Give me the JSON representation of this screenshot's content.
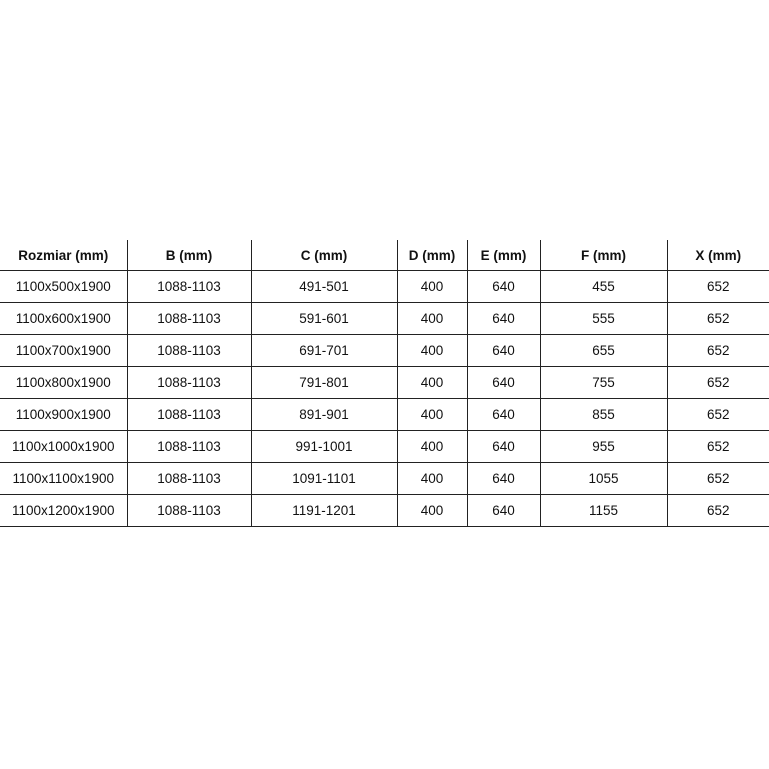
{
  "table": {
    "headers": [
      "Rozmiar (mm)",
      "B (mm)",
      "C (mm)",
      "D (mm)",
      "E (mm)",
      "F (mm)",
      "X (mm)"
    ],
    "rows": [
      [
        "1100x500x1900",
        "1088-1103",
        "491-501",
        "400",
        "640",
        "455",
        "652"
      ],
      [
        "1100x600x1900",
        "1088-1103",
        "591-601",
        "400",
        "640",
        "555",
        "652"
      ],
      [
        "1100x700x1900",
        "1088-1103",
        "691-701",
        "400",
        "640",
        "655",
        "652"
      ],
      [
        "1100x800x1900",
        "1088-1103",
        "791-801",
        "400",
        "640",
        "755",
        "652"
      ],
      [
        "1100x900x1900",
        "1088-1103",
        "891-901",
        "400",
        "640",
        "855",
        "652"
      ],
      [
        "1100x1000x1900",
        "1088-1103",
        "991-1001",
        "400",
        "640",
        "955",
        "652"
      ],
      [
        "1100x1100x1900",
        "1088-1103",
        "1091-1101",
        "400",
        "640",
        "1055",
        "652"
      ],
      [
        "1100x1200x1900",
        "1088-1103",
        "1191-1201",
        "400",
        "640",
        "1155",
        "652"
      ]
    ]
  }
}
